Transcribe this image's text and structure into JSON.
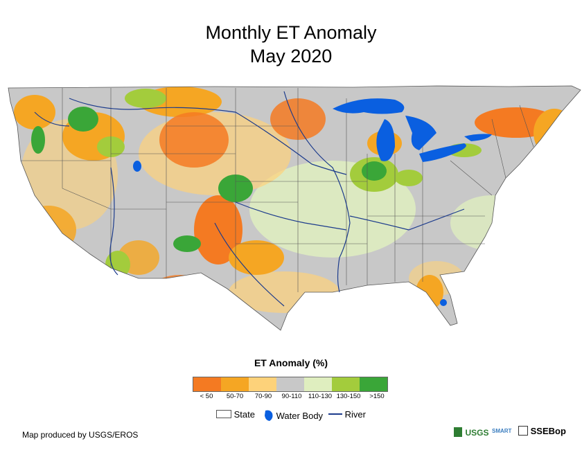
{
  "title": {
    "line1": "Monthly ET Anomaly",
    "line2": "May 2020"
  },
  "legend": {
    "title": "ET Anomaly (%)",
    "classes": [
      {
        "label": "< 50",
        "color": "#f47a22"
      },
      {
        "label": "50-70",
        "color": "#f5a623"
      },
      {
        "label": "70-90",
        "color": "#fdd27a"
      },
      {
        "label": "90-110",
        "color": "#c8c8c8"
      },
      {
        "label": "110-130",
        "color": "#dfeebf"
      },
      {
        "label": "130-150",
        "color": "#a3cc3c"
      },
      {
        "label": ">150",
        "color": "#3aa638"
      }
    ],
    "keys": {
      "state": "State",
      "water_body": "Water Body",
      "river": "River"
    },
    "water_color": "#0a5fe0",
    "river_color": "#1c3b8c"
  },
  "credit": "Map produced by USGS/EROS",
  "logos": {
    "usgs": "USGS",
    "smart": "SMART",
    "ssebop": "SSEBop"
  }
}
